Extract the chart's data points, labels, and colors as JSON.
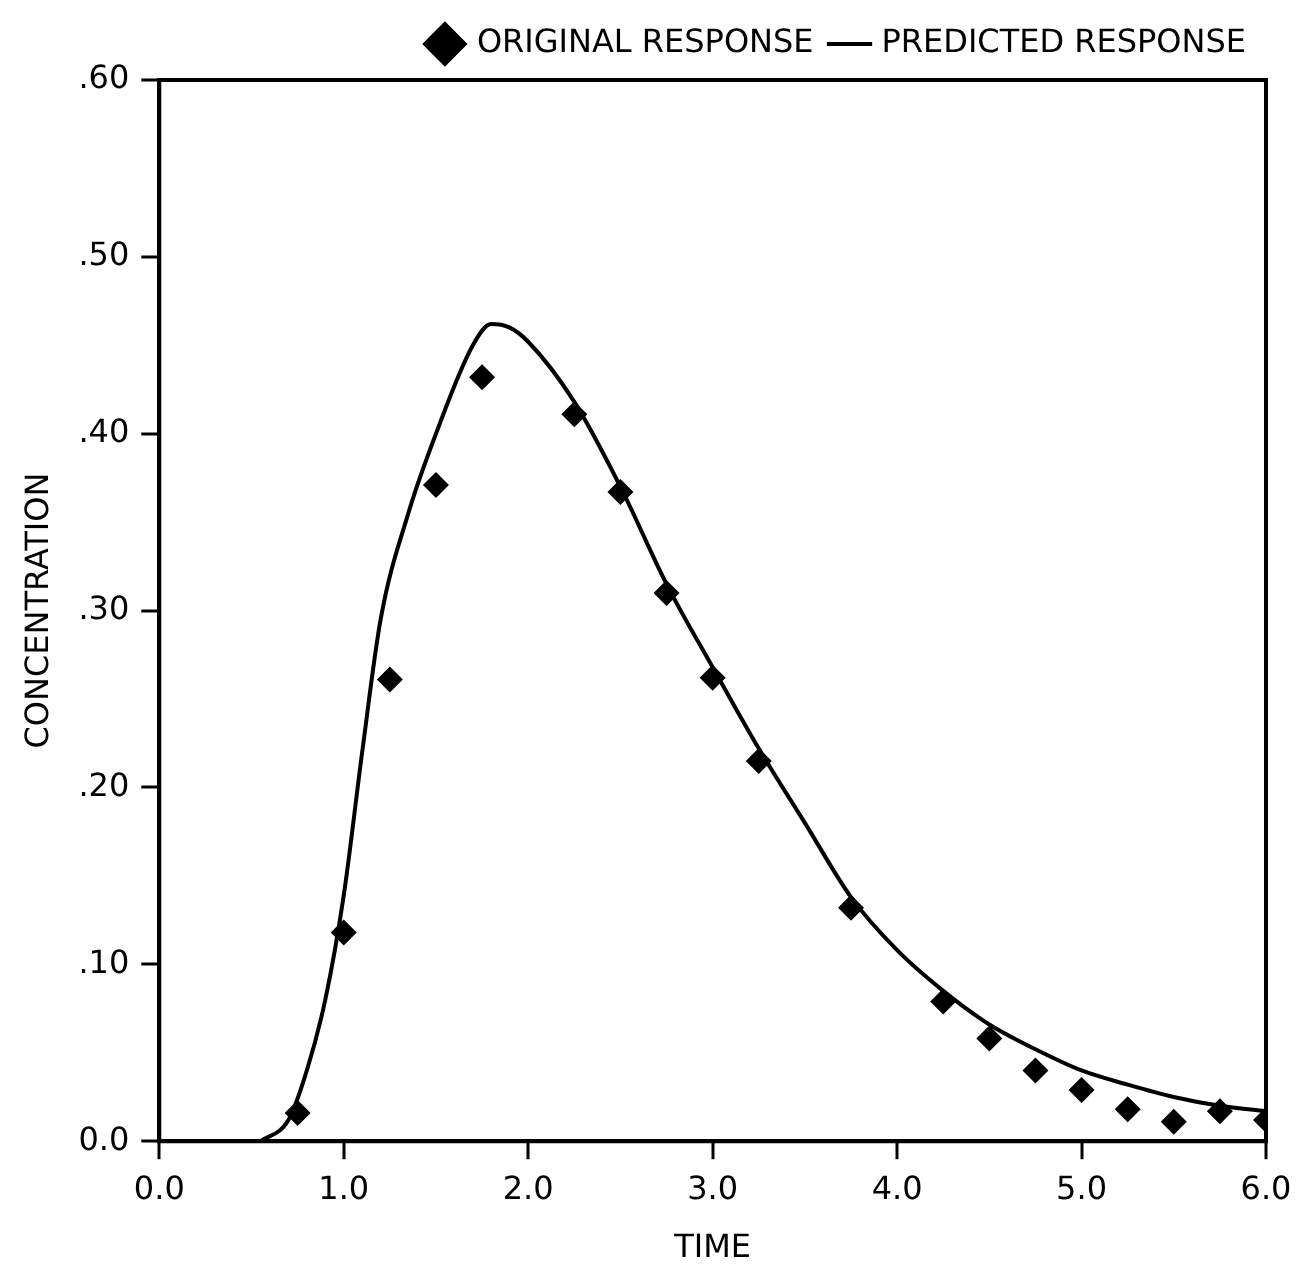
{
  "chart_data": {
    "type": "scatter",
    "xlabel": "TIME",
    "ylabel": "CONCENTRATION",
    "xlim": [
      0,
      6
    ],
    "ylim": [
      0,
      0.6
    ],
    "xticks": [
      {
        "value": 0,
        "label": "0.0"
      },
      {
        "value": 1,
        "label": "1.0"
      },
      {
        "value": 2,
        "label": "2.0"
      },
      {
        "value": 3,
        "label": "3.0"
      },
      {
        "value": 4,
        "label": "4.0"
      },
      {
        "value": 5,
        "label": "5.0"
      },
      {
        "value": 6,
        "label": "6.0"
      }
    ],
    "yticks": [
      {
        "value": 0,
        "label": "0.0"
      },
      {
        "value": 0.1,
        "label": ".10"
      },
      {
        "value": 0.2,
        "label": ".20"
      },
      {
        "value": 0.3,
        "label": ".30"
      },
      {
        "value": 0.4,
        "label": ".40"
      },
      {
        "value": 0.5,
        "label": ".50"
      },
      {
        "value": 0.6,
        "label": ".60"
      }
    ],
    "grid": false,
    "legend": "top right",
    "series": [
      {
        "name": "ORIGINAL RESPONSE",
        "marker": "diamond",
        "color": "#000000",
        "x": [
          0.75,
          1.0,
          1.25,
          1.5,
          1.75,
          2.25,
          2.5,
          2.75,
          3.0,
          3.25,
          3.75,
          4.25,
          4.5,
          4.75,
          5.0,
          5.25,
          5.5,
          5.75,
          6.0
        ],
        "values": [
          0.016,
          0.118,
          0.261,
          0.371,
          0.432,
          0.411,
          0.367,
          0.31,
          0.262,
          0.215,
          0.132,
          0.079,
          0.058,
          0.04,
          0.029,
          0.018,
          0.011,
          0.017,
          0.012
        ]
      },
      {
        "name": "PREDICTED RESPONSE",
        "type": "line",
        "marker": "none",
        "line_style": "solid",
        "color": "#000000",
        "x": [
          0.55,
          0.7,
          0.8,
          0.9,
          1.0,
          1.1,
          1.2,
          1.35,
          1.5,
          1.7,
          1.8,
          1.9,
          2.0,
          2.25,
          2.5,
          2.75,
          3.0,
          3.25,
          3.5,
          3.75,
          4.0,
          4.25,
          4.5,
          4.75,
          5.0,
          5.25,
          5.5,
          5.75,
          6.0
        ],
        "values": [
          0,
          0.012,
          0.04,
          0.08,
          0.139,
          0.22,
          0.295,
          0.355,
          0.4,
          0.45,
          0.462,
          0.46,
          0.452,
          0.418,
          0.37,
          0.315,
          0.268,
          0.222,
          0.18,
          0.138,
          0.108,
          0.085,
          0.066,
          0.052,
          0.04,
          0.032,
          0.025,
          0.02,
          0.017
        ]
      }
    ]
  }
}
